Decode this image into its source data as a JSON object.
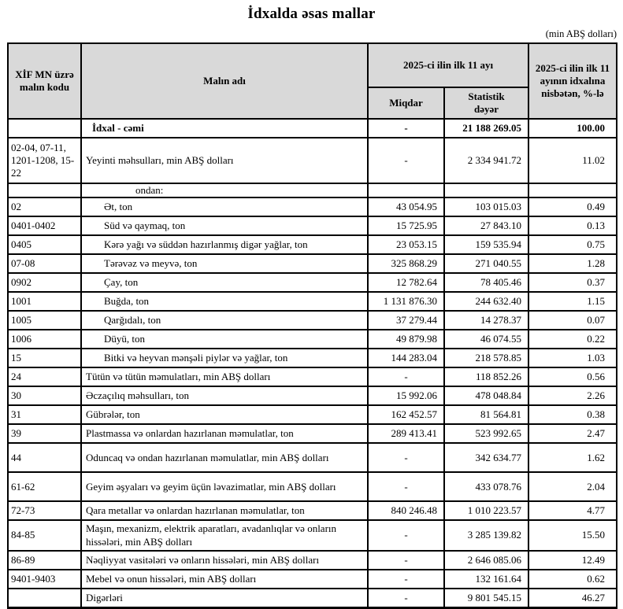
{
  "page": {
    "title": "İdxalda əsas mallar",
    "unit_note": "(min ABŞ dolları)"
  },
  "table": {
    "columns": {
      "code": "XİF MN üzrə malın kodu",
      "name": "Malın adı",
      "period_group": "2025-ci ilin ilk 11 ayı",
      "quantity": "Miqdar",
      "stat_value": "Statistik dəyər",
      "share": "2025-ci ilin ilk 11 ayının idxalına nisbətən, %-lə"
    },
    "rows": [
      {
        "code": "",
        "name": "İdxal - cəmi",
        "quantity": "-",
        "stat_value": "21 188 269.05",
        "share": "100.00",
        "type": "total"
      },
      {
        "code": "02-04, 07-11, 1201-1208, 15-22",
        "name": "Yeyinti məhsulları, min ABŞ dolları",
        "quantity": "-",
        "stat_value": "2 334 941.72",
        "share": "11.02",
        "type": "category"
      },
      {
        "code": "",
        "name": "ondan:",
        "quantity": "",
        "stat_value": "",
        "share": "",
        "type": "subheader"
      },
      {
        "code": "02",
        "name": "Ət, ton",
        "quantity": "43 054.95",
        "stat_value": "103 015.03",
        "share": "0.49",
        "type": "subitem"
      },
      {
        "code": "0401-0402",
        "name": "Süd və qaymaq, ton",
        "quantity": "15 725.95",
        "stat_value": "27 843.10",
        "share": "0.13",
        "type": "subitem"
      },
      {
        "code": "0405",
        "name": "Kərə yağı və süddən hazırlanmış digər yağlar, ton",
        "quantity": "23 053.15",
        "stat_value": "159 535.94",
        "share": "0.75",
        "type": "subitem"
      },
      {
        "code": "07-08",
        "name": "Tərəvəz və meyvə, ton",
        "quantity": "325 868.29",
        "stat_value": "271 040.55",
        "share": "1.28",
        "type": "subitem"
      },
      {
        "code": "0902",
        "name": "Çay, ton",
        "quantity": "12 782.64",
        "stat_value": "78 405.46",
        "share": "0.37",
        "type": "subitem"
      },
      {
        "code": "1001",
        "name": "Buğda, ton",
        "quantity": "1 131 876.30",
        "stat_value": "244 632.40",
        "share": "1.15",
        "type": "subitem"
      },
      {
        "code": "1005",
        "name": "Qarğıdalı, ton",
        "quantity": "37 279.44",
        "stat_value": "14 278.37",
        "share": "0.07",
        "type": "subitem"
      },
      {
        "code": "1006",
        "name": "Düyü, ton",
        "quantity": "49 879.98",
        "stat_value": "46 074.55",
        "share": "0.22",
        "type": "subitem"
      },
      {
        "code": "15",
        "name": "Bitki və heyvan mənşəli piylər və yağlar, ton",
        "quantity": "144 283.04",
        "stat_value": "218 578.85",
        "share": "1.03",
        "type": "subitem"
      },
      {
        "code": "24",
        "name": "Tütün və tütün məmulatları, min ABŞ dolları",
        "quantity": "-",
        "stat_value": "118 852.26",
        "share": "0.56",
        "type": "category"
      },
      {
        "code": "30",
        "name": "Əczaçılıq məhsulları, ton",
        "quantity": "15 992.06",
        "stat_value": "478 048.84",
        "share": "2.26",
        "type": "category"
      },
      {
        "code": "31",
        "name": "Gübrələr, ton",
        "quantity": "162 452.57",
        "stat_value": "81 564.81",
        "share": "0.38",
        "type": "category"
      },
      {
        "code": "39",
        "name": "Plastmassa və onlardan hazırlanan məmulatlar, ton",
        "quantity": "289 413.41",
        "stat_value": "523 992.65",
        "share": "2.47",
        "type": "category"
      },
      {
        "code": "44",
        "name": "Oduncaq və ondan hazırlanan məmulatlar, min ABŞ dolları",
        "quantity": "-",
        "stat_value": "342 634.77",
        "share": "1.62",
        "type": "category"
      },
      {
        "code": "61-62",
        "name": "Geyim əşyaları və geyim üçün ləvazimatlar, min ABŞ dolları",
        "quantity": "-",
        "stat_value": "433 078.76",
        "share": "2.04",
        "type": "category"
      },
      {
        "code": "72-73",
        "name": "Qara metallar və onlardan hazırlanan məmulatlar, ton",
        "quantity": "840 246.48",
        "stat_value": "1 010 223.57",
        "share": "4.77",
        "type": "category"
      },
      {
        "code": "84-85",
        "name": "Maşın, mexanizm, elektrik aparatları, avadanlıqlar və onların hissələri, min ABŞ dolları",
        "quantity": "-",
        "stat_value": "3 285 139.82",
        "share": "15.50",
        "type": "category"
      },
      {
        "code": "86-89",
        "name": "Nəqliyyat vasitələri və onların hissələri, min ABŞ dolları",
        "quantity": "-",
        "stat_value": "2 646 085.06",
        "share": "12.49",
        "type": "category"
      },
      {
        "code": "9401-9403",
        "name": "Mebel və onun hissələri, min ABŞ dolları",
        "quantity": "-",
        "stat_value": "132 161.64",
        "share": "0.62",
        "type": "category"
      },
      {
        "code": "",
        "name": "Digərləri",
        "quantity": "-",
        "stat_value": "9 801 545.15",
        "share": "46.27",
        "type": "category"
      }
    ]
  }
}
